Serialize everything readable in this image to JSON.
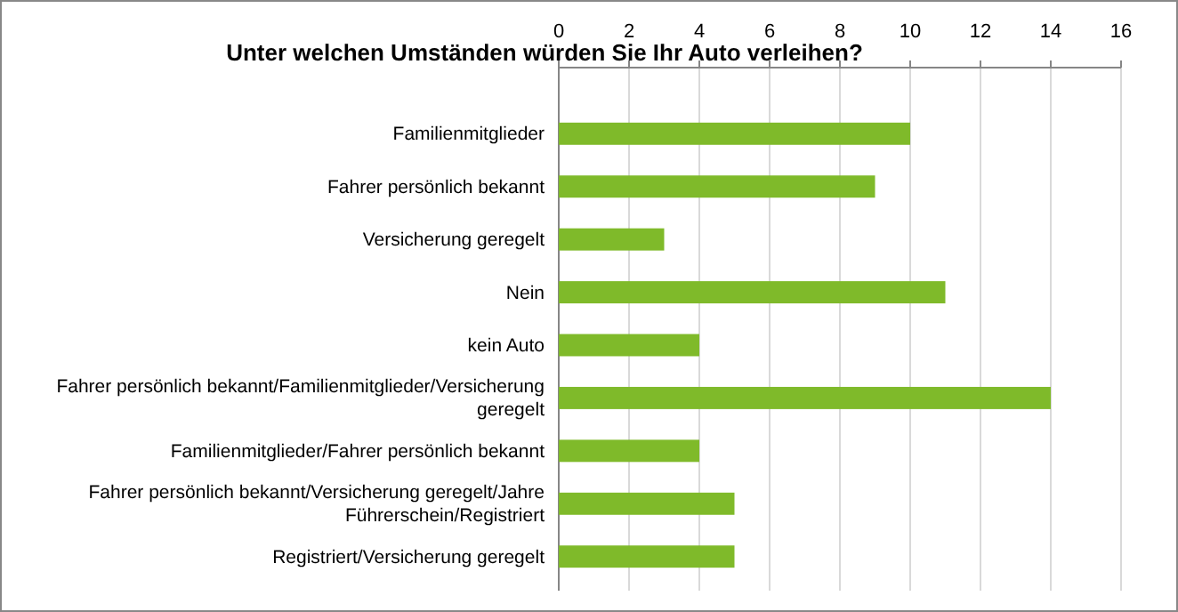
{
  "chart_data": {
    "type": "bar",
    "orientation": "horizontal",
    "title": "Unter welchen Umständen würden Sie Ihr Auto verleihen?",
    "categories": [
      "Familienmitglieder",
      "Fahrer persönlich bekannt",
      "Versicherung geregelt",
      "Nein",
      "kein Auto",
      "Fahrer persönlich bekannt/Familienmitglieder/Versicherung geregelt",
      "Familienmitglieder/Fahrer persönlich bekannt",
      "Fahrer persönlich bekannt/Versicherung geregelt/Jahre Führerschein/Registriert",
      "Registriert/Versicherung geregelt"
    ],
    "values": [
      10,
      9,
      3,
      11,
      4,
      14,
      4,
      5,
      5
    ],
    "color": "#7fba2a",
    "xlim": [
      0,
      16
    ],
    "xticks": [
      0,
      2,
      4,
      6,
      8,
      10,
      12,
      14,
      16
    ],
    "grid": "x"
  }
}
